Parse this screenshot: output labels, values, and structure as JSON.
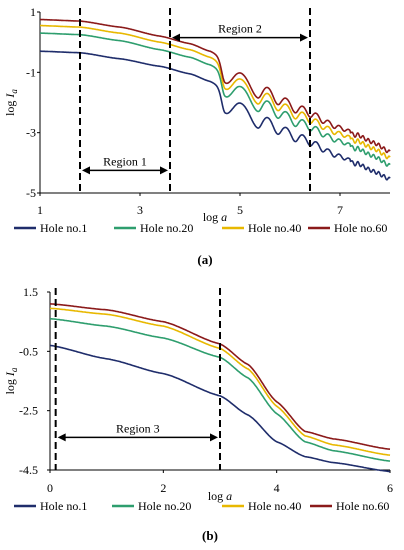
{
  "chart_data": [
    {
      "type": "line",
      "panel_label": "(a)",
      "xlabel": "log a",
      "ylabel": "log I",
      "ylabel_sub": "a",
      "xlim": [
        1,
        8
      ],
      "ylim": [
        -5,
        1
      ],
      "x_ticks": [
        1,
        3,
        5,
        7
      ],
      "y_ticks": [
        1,
        -1,
        -3,
        -5
      ],
      "grid": false,
      "legend_position": "bottom",
      "series": [
        {
          "name": "Hole no.1",
          "color": "#1f2d6b",
          "base": [
            [
              1.0,
              -0.3
            ],
            [
              1.8,
              -0.35
            ],
            [
              2.6,
              -0.55
            ],
            [
              3.4,
              -0.8
            ],
            [
              4.0,
              -1.05
            ],
            [
              4.4,
              -1.3
            ],
            [
              4.9,
              -1.85
            ],
            [
              5.5,
              -2.4
            ],
            [
              6.2,
              -3.0
            ],
            [
              7.0,
              -3.7
            ],
            [
              7.7,
              -4.3
            ],
            [
              8.0,
              -4.55
            ]
          ]
        },
        {
          "name": "Hole no.20",
          "color": "#2e9e6e",
          "base": [
            [
              1.0,
              0.3
            ],
            [
              1.8,
              0.25
            ],
            [
              2.6,
              0.05
            ],
            [
              3.4,
              -0.25
            ],
            [
              4.0,
              -0.5
            ],
            [
              4.4,
              -0.75
            ],
            [
              4.9,
              -1.3
            ],
            [
              5.5,
              -1.85
            ],
            [
              6.2,
              -2.5
            ],
            [
              7.0,
              -3.2
            ],
            [
              7.7,
              -3.8
            ],
            [
              8.0,
              -4.1
            ]
          ]
        },
        {
          "name": "Hole no.40",
          "color": "#e8b800",
          "base": [
            [
              1.0,
              0.55
            ],
            [
              1.8,
              0.5
            ],
            [
              2.6,
              0.3
            ],
            [
              3.4,
              0.0
            ],
            [
              4.0,
              -0.25
            ],
            [
              4.4,
              -0.5
            ],
            [
              4.9,
              -1.05
            ],
            [
              5.5,
              -1.6
            ],
            [
              6.2,
              -2.25
            ],
            [
              7.0,
              -2.95
            ],
            [
              7.7,
              -3.55
            ],
            [
              8.0,
              -3.85
            ]
          ]
        },
        {
          "name": "Hole no.60",
          "color": "#8b1a1a",
          "base": [
            [
              1.0,
              0.75
            ],
            [
              1.8,
              0.7
            ],
            [
              2.6,
              0.5
            ],
            [
              3.4,
              0.2
            ],
            [
              4.0,
              -0.05
            ],
            [
              4.4,
              -0.3
            ],
            [
              4.9,
              -0.85
            ],
            [
              5.5,
              -1.4
            ],
            [
              6.2,
              -2.05
            ],
            [
              7.0,
              -2.75
            ],
            [
              7.7,
              -3.35
            ],
            [
              8.0,
              -3.65
            ]
          ]
        }
      ],
      "ripple": {
        "start": 4.4,
        "dips": [
          4.7,
          5.35,
          5.75,
          6.1,
          6.4,
          6.65,
          6.88,
          7.08,
          7.27
        ],
        "depth": 0.7,
        "taper": 0.8
      },
      "vlines": [
        1.8,
        3.6,
        6.4
      ],
      "regions": [
        {
          "label": "Region 1",
          "from": 1.8,
          "to": 3.6,
          "y": -4.25
        },
        {
          "label": "Region 2",
          "from": 3.6,
          "to": 6.4,
          "y": 0.15
        }
      ]
    },
    {
      "type": "line",
      "panel_label": "(b)",
      "xlabel": "log a",
      "ylabel": "log I",
      "ylabel_sub": "a",
      "xlim": [
        0,
        6
      ],
      "ylim": [
        -4.5,
        1.5
      ],
      "x_ticks": [
        0,
        2,
        4,
        6
      ],
      "y_ticks": [
        1.5,
        -0.5,
        -2.5,
        -4.5
      ],
      "grid": false,
      "legend_position": "bottom",
      "series": [
        {
          "name": "Hole no.1",
          "color": "#1f2d6b",
          "points": [
            [
              0,
              -0.3
            ],
            [
              1,
              -0.75
            ],
            [
              2,
              -1.25
            ],
            [
              3,
              -2.0
            ],
            [
              3.5,
              -2.65
            ],
            [
              4.0,
              -3.55
            ],
            [
              4.5,
              -4.05
            ],
            [
              5,
              -4.25
            ],
            [
              6,
              -4.55
            ]
          ]
        },
        {
          "name": "Hole no.20",
          "color": "#2e9e6e",
          "points": [
            [
              0,
              0.6
            ],
            [
              1,
              0.35
            ],
            [
              2,
              -0.05
            ],
            [
              3,
              -0.7
            ],
            [
              3.5,
              -1.4
            ],
            [
              4.0,
              -2.6
            ],
            [
              4.5,
              -3.55
            ],
            [
              5,
              -3.85
            ],
            [
              6,
              -4.2
            ]
          ]
        },
        {
          "name": "Hole no.40",
          "color": "#e8b800",
          "points": [
            [
              0,
              0.95
            ],
            [
              1,
              0.75
            ],
            [
              2,
              0.35
            ],
            [
              3,
              -0.4
            ],
            [
              3.5,
              -1.1
            ],
            [
              4.0,
              -2.35
            ],
            [
              4.5,
              -3.35
            ],
            [
              5,
              -3.65
            ],
            [
              6,
              -4.0
            ]
          ]
        },
        {
          "name": "Hole no.60",
          "color": "#8b1a1a",
          "points": [
            [
              0,
              1.1
            ],
            [
              1,
              0.9
            ],
            [
              2,
              0.5
            ],
            [
              3,
              -0.25
            ],
            [
              3.5,
              -0.95
            ],
            [
              4.0,
              -2.2
            ],
            [
              4.5,
              -3.2
            ],
            [
              5,
              -3.45
            ],
            [
              6,
              -3.8
            ]
          ]
        }
      ],
      "vlines": [
        0.1,
        3.0
      ],
      "regions": [
        {
          "label": "Region 3",
          "from": 0.1,
          "to": 3.0,
          "y": -3.4
        }
      ]
    }
  ]
}
